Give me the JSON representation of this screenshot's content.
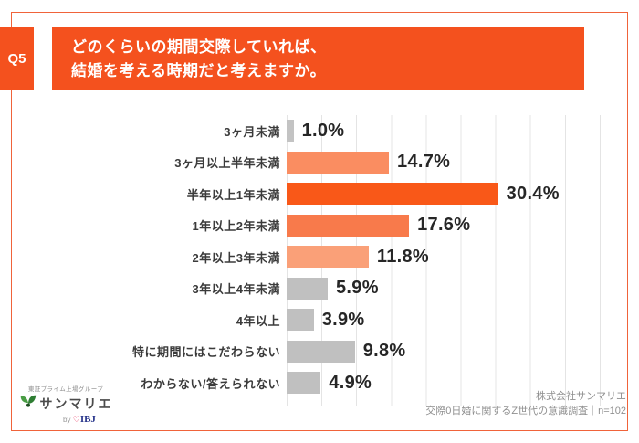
{
  "header": {
    "question_label": "Q5",
    "title_line1": "どのくらいの期間交際していれば、",
    "title_line2": "結婚を考える時期だと考えますか。"
  },
  "chart_data": {
    "type": "bar",
    "orientation": "horizontal",
    "title": "どのくらいの期間交際していれば、結婚を考える時期だと考えますか。",
    "categories": [
      "3ヶ月未満",
      "3ヶ月以上半年未満",
      "半年以上1年未満",
      "1年以上2年未満",
      "2年以上3年未満",
      "3年以上4年未満",
      "4年以上",
      "特に期間にはこだわらない",
      "わからない/答えられない"
    ],
    "values": [
      1.0,
      14.7,
      30.4,
      17.6,
      11.8,
      5.9,
      3.9,
      9.8,
      4.9
    ],
    "value_labels": [
      "1.0%",
      "14.7%",
      "30.4%",
      "17.6%",
      "11.8%",
      "5.9%",
      "3.9%",
      "9.8%",
      "4.9%"
    ],
    "bar_colors": [
      "#c3c3c3",
      "#fa8d61",
      "#f95818",
      "#f87a4b",
      "#faa078",
      "#c0c0c0",
      "#c0c0c0",
      "#c0c0c0",
      "#c0c0c0"
    ],
    "unit": "%",
    "xlim": [
      0,
      45
    ],
    "grid": true,
    "gridline_interval": 5,
    "legend": false
  },
  "footer": {
    "credit_line1": "株式会社サンマリエ",
    "credit_line2": "交際0日婚に関するZ世代の意識調査｜n=102"
  },
  "logo": {
    "group_label": "東証プライム上場グループ",
    "brand": "サンマリエ",
    "by_label": "by",
    "heart": "♡",
    "ibj_label": "IBJ"
  },
  "colors": {
    "accent_orange": "#f4511e",
    "frame_orange": "#f0633a",
    "strong_bar_orange": "#f95818",
    "gray_bar": "#c0c0c0",
    "gridline": "#e4e4e4",
    "value_text": "#262626",
    "credit_text": "#8f8f8f"
  }
}
